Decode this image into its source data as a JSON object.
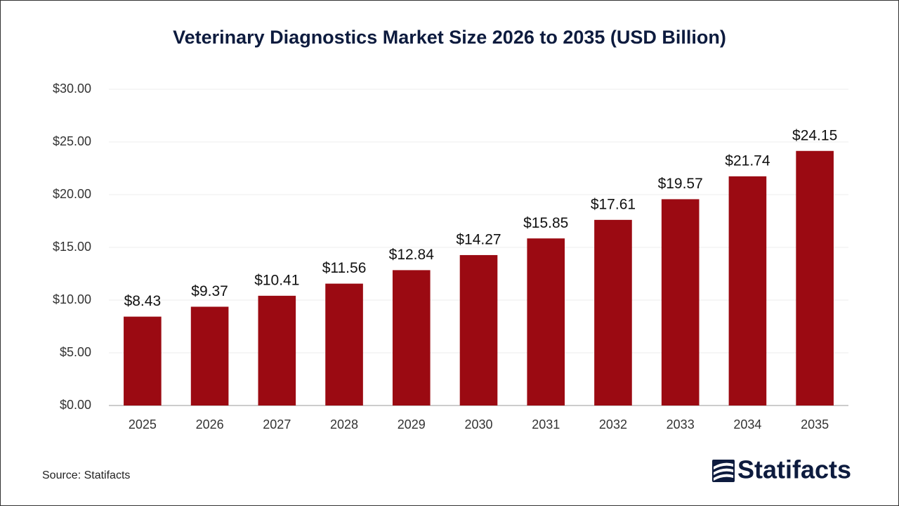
{
  "chart_data": {
    "type": "bar",
    "title": "Veterinary Diagnostics Market Size 2026 to 2035 (USD Billion)",
    "categories": [
      "2025",
      "2026",
      "2027",
      "2028",
      "2029",
      "2030",
      "2031",
      "2032",
      "2033",
      "2034",
      "2035"
    ],
    "values": [
      8.43,
      9.37,
      10.41,
      11.56,
      12.84,
      14.27,
      15.85,
      17.61,
      19.57,
      21.74,
      24.15
    ],
    "value_labels": [
      "$8.43",
      "$9.37",
      "$10.41",
      "$11.56",
      "$12.84",
      "$14.27",
      "$15.85",
      "$17.61",
      "$19.57",
      "$21.74",
      "$24.15"
    ],
    "color": "#9b0a12",
    "ylim": [
      0,
      30
    ],
    "yticks": [
      {
        "value": 0,
        "label": "$0.00"
      },
      {
        "value": 5,
        "label": "$5.00"
      },
      {
        "value": 10,
        "label": "$10.00"
      },
      {
        "value": 15,
        "label": "$15.00"
      },
      {
        "value": 20,
        "label": "$20.00"
      },
      {
        "value": 25,
        "label": "$25.00"
      },
      {
        "value": 30,
        "label": "$30.00"
      }
    ],
    "grid": true,
    "source": "Source: Statifacts",
    "logo": "Statifacts"
  }
}
